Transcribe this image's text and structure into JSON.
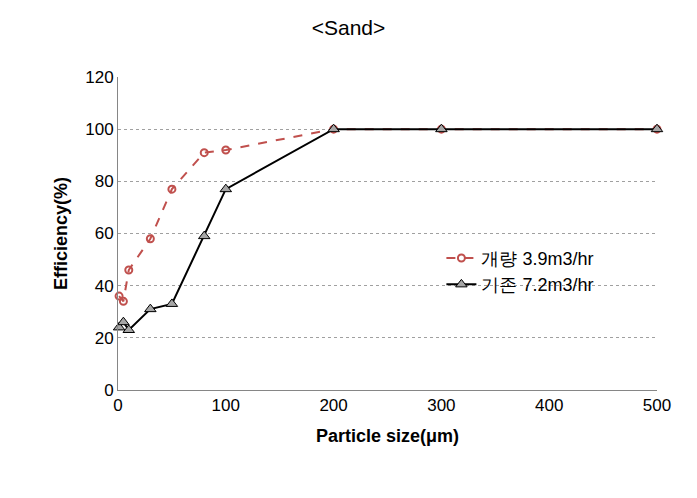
{
  "chart_data": {
    "type": "line",
    "title": "<Sand>",
    "x_label": "Particle size(μm)",
    "y_label": "Efficiency(%)",
    "xlim": [
      0,
      500
    ],
    "xticks": [
      0,
      100,
      200,
      300,
      400,
      500
    ],
    "ylim": [
      0,
      120
    ],
    "yticks": [
      0,
      20,
      40,
      60,
      80,
      100,
      120
    ],
    "grid": true,
    "legend": "right",
    "series": [
      {
        "name": "개량 3.9m3/hr",
        "color": "#c0504d",
        "marker": "circle-open",
        "line_style": "dash",
        "x": [
          1,
          5,
          10,
          30,
          50,
          80,
          100,
          200,
          300,
          500
        ],
        "values": [
          36,
          34,
          46,
          58,
          77,
          91,
          92,
          100,
          100,
          100
        ]
      },
      {
        "name": "기존 7.2m3/hr",
        "color": "#000000",
        "marker": "triangle-up",
        "line_style": "solid",
        "x": [
          1,
          5,
          10,
          30,
          50,
          80,
          100,
          200,
          300,
          500
        ],
        "values": [
          24,
          26,
          23,
          31,
          33,
          59,
          77,
          100,
          100,
          100
        ]
      }
    ]
  }
}
